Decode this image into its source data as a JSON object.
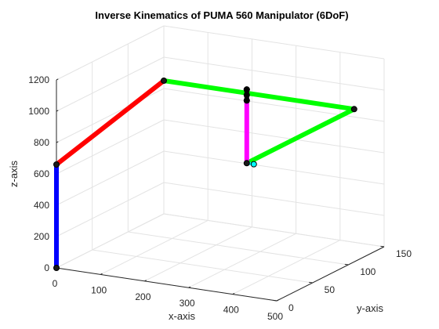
{
  "chart_data": {
    "type": "line",
    "projection": "3d",
    "title": "Inverse Kinematics of PUMA 560 Manipulator (6DoF)",
    "xlabel": "x-axis",
    "ylabel": "y-axis",
    "zlabel": "z-axis",
    "xlim": [
      0,
      500
    ],
    "ylim": [
      0,
      150
    ],
    "zlim": [
      0,
      1200
    ],
    "xticks": [
      "0",
      "100",
      "200",
      "300",
      "400",
      "500"
    ],
    "yticks": [
      "0",
      "50",
      "100",
      "150"
    ],
    "zticks": [
      "0",
      "200",
      "400",
      "600",
      "800",
      "1000",
      "1200"
    ],
    "grid": true,
    "series": [
      {
        "color": "#0000ff",
        "points": [
          [
            0,
            0,
            0
          ],
          [
            0,
            0,
            660
          ]
        ]
      },
      {
        "color": "#ff0000",
        "points": [
          [
            0,
            0,
            660
          ],
          [
            0,
            150,
            850
          ]
        ]
      },
      {
        "color": "#00ff00",
        "points": [
          [
            0,
            150,
            850
          ],
          [
            432,
            150,
            850
          ]
        ]
      },
      {
        "color": "#00ff00",
        "points": [
          [
            432,
            150,
            850
          ],
          [
            432,
            0,
            850
          ]
        ]
      },
      {
        "color": "#ff00ff",
        "points": [
          [
            432,
            0,
            850
          ],
          [
            432,
            0,
            1250
          ]
        ]
      },
      {
        "color": "#00ffff",
        "points": [
          [
            432,
            0,
            850
          ],
          [
            448,
            0,
            850
          ]
        ]
      },
      {
        "color": "#000000",
        "points": [
          [
            432,
            0,
            1250
          ],
          [
            432,
            0,
            1320
          ]
        ]
      }
    ]
  }
}
